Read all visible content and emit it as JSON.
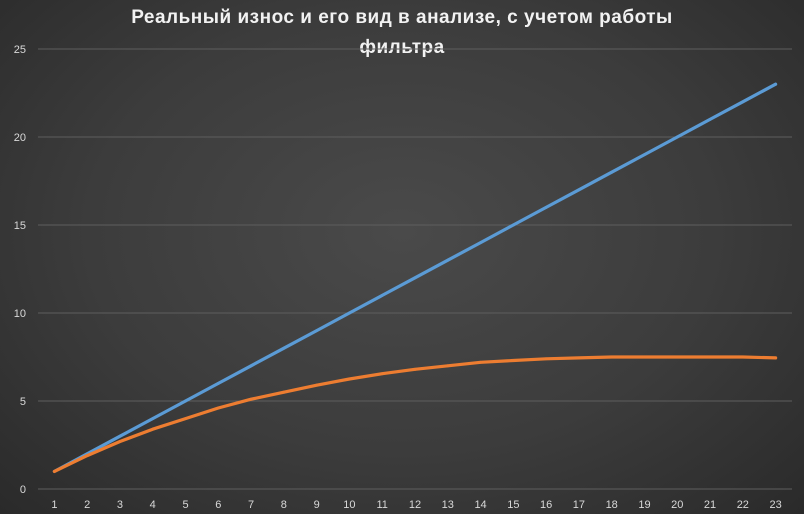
{
  "chart_data": {
    "type": "line",
    "title_line1": "Реальный износ и его вид в анализе, с учетом работы",
    "title_line2": "фильтра",
    "xlabel": "",
    "ylabel": "",
    "categories": [
      1,
      2,
      3,
      4,
      5,
      6,
      7,
      8,
      9,
      10,
      11,
      12,
      13,
      14,
      15,
      16,
      17,
      18,
      19,
      20,
      21,
      22,
      23
    ],
    "ylim": [
      0,
      25
    ],
    "yticks": [
      0,
      5,
      10,
      15,
      20,
      25
    ],
    "grid": "horizontal",
    "legend": "none",
    "series": [
      {
        "color": "#5b9bd5",
        "values": [
          1,
          2,
          3,
          4,
          5,
          6,
          7,
          8,
          9,
          10,
          11,
          12,
          13,
          14,
          15,
          16,
          17,
          18,
          19,
          20,
          21,
          22,
          23
        ]
      },
      {
        "color": "#ed7d31",
        "values": [
          1,
          1.9,
          2.7,
          3.4,
          4.0,
          4.6,
          5.1,
          5.5,
          5.9,
          6.25,
          6.55,
          6.8,
          7.0,
          7.2,
          7.3,
          7.4,
          7.45,
          7.5,
          7.5,
          7.5,
          7.5,
          7.5,
          7.45
        ]
      }
    ]
  }
}
